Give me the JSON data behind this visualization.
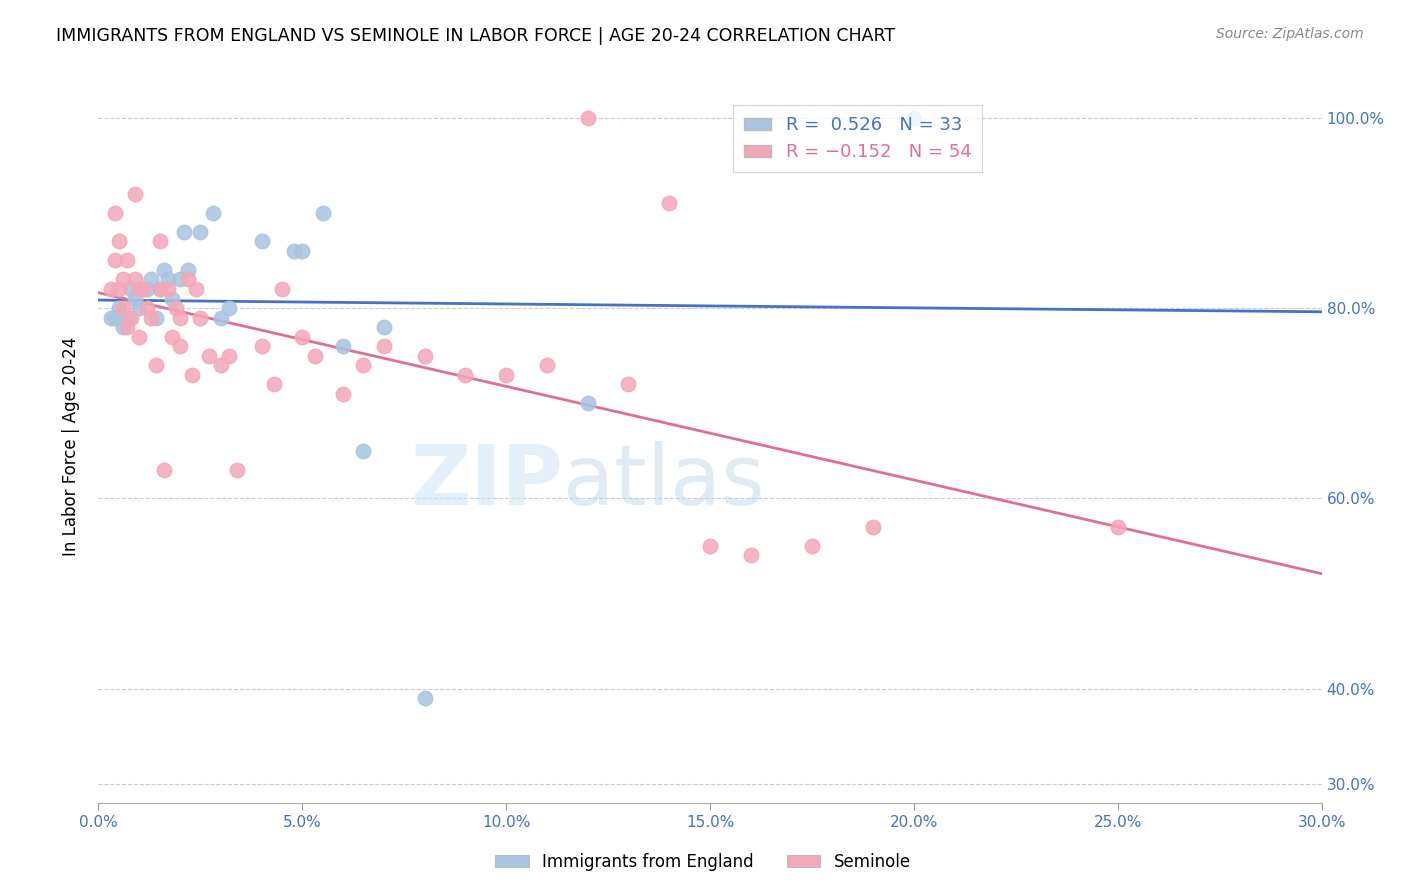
{
  "title": "IMMIGRANTS FROM ENGLAND VS SEMINOLE IN LABOR FORCE | AGE 20-24 CORRELATION CHART",
  "source": "Source: ZipAtlas.com",
  "ylabel": "In Labor Force | Age 20-24",
  "xlim": [
    0.0,
    0.3
  ],
  "ylim": [
    0.28,
    1.03
  ],
  "ytick_labels": [
    "30.0%",
    "40.0%",
    "60.0%",
    "80.0%",
    "100.0%"
  ],
  "ytick_values": [
    0.3,
    0.4,
    0.6,
    0.8,
    1.0
  ],
  "xtick_labels": [
    "0.0%",
    "5.0%",
    "10.0%",
    "15.0%",
    "20.0%",
    "25.0%",
    "30.0%"
  ],
  "xtick_values": [
    0.0,
    0.05,
    0.1,
    0.15,
    0.2,
    0.25,
    0.3
  ],
  "england_R": 0.526,
  "england_N": 33,
  "seminole_R": -0.152,
  "seminole_N": 54,
  "england_color": "#a8c4e0",
  "seminole_color": "#f4a7b9",
  "england_line_color": "#4472c4",
  "seminole_line_color": "#e07090",
  "england_points_x": [
    0.003,
    0.004,
    0.005,
    0.006,
    0.007,
    0.008,
    0.009,
    0.01,
    0.011,
    0.012,
    0.013,
    0.014,
    0.015,
    0.016,
    0.017,
    0.018,
    0.02,
    0.021,
    0.022,
    0.025,
    0.028,
    0.03,
    0.032,
    0.04,
    0.048,
    0.05,
    0.055,
    0.06,
    0.065,
    0.07,
    0.08,
    0.12,
    0.2
  ],
  "england_points_y": [
    0.79,
    0.79,
    0.8,
    0.78,
    0.79,
    0.82,
    0.81,
    0.8,
    0.82,
    0.82,
    0.83,
    0.79,
    0.82,
    0.84,
    0.83,
    0.81,
    0.83,
    0.88,
    0.84,
    0.88,
    0.9,
    0.79,
    0.8,
    0.87,
    0.86,
    0.86,
    0.9,
    0.76,
    0.65,
    0.78,
    0.39,
    0.7,
    1.0
  ],
  "seminole_points_x": [
    0.003,
    0.004,
    0.004,
    0.005,
    0.005,
    0.006,
    0.006,
    0.007,
    0.007,
    0.008,
    0.009,
    0.009,
    0.01,
    0.01,
    0.011,
    0.012,
    0.013,
    0.014,
    0.015,
    0.015,
    0.016,
    0.017,
    0.018,
    0.019,
    0.02,
    0.02,
    0.022,
    0.023,
    0.024,
    0.025,
    0.027,
    0.03,
    0.032,
    0.034,
    0.04,
    0.043,
    0.045,
    0.05,
    0.053,
    0.06,
    0.065,
    0.07,
    0.08,
    0.09,
    0.1,
    0.11,
    0.12,
    0.13,
    0.14,
    0.15,
    0.16,
    0.175,
    0.19,
    0.25
  ],
  "seminole_points_y": [
    0.82,
    0.9,
    0.85,
    0.82,
    0.87,
    0.8,
    0.83,
    0.78,
    0.85,
    0.79,
    0.83,
    0.92,
    0.82,
    0.77,
    0.82,
    0.8,
    0.79,
    0.74,
    0.82,
    0.87,
    0.63,
    0.82,
    0.77,
    0.8,
    0.76,
    0.79,
    0.83,
    0.73,
    0.82,
    0.79,
    0.75,
    0.74,
    0.75,
    0.63,
    0.76,
    0.72,
    0.82,
    0.77,
    0.75,
    0.71,
    0.74,
    0.76,
    0.75,
    0.73,
    0.73,
    0.74,
    1.0,
    0.72,
    0.91,
    0.55,
    0.54,
    0.55,
    0.57,
    0.57
  ]
}
